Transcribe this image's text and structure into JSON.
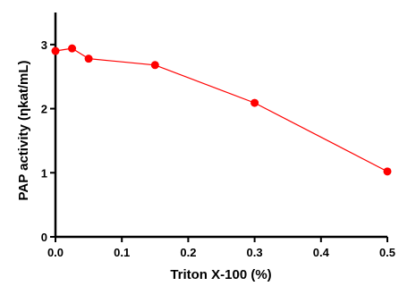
{
  "chart_data": {
    "type": "line",
    "title": "",
    "xlabel": "Triton X-100 (%)",
    "ylabel": "PAP activity (ηkat/mL)",
    "xlim": [
      0,
      0.5
    ],
    "ylim": [
      0,
      3.5
    ],
    "xticks": [
      "0.0",
      "0.1",
      "0.2",
      "0.3",
      "0.4",
      "0.5"
    ],
    "yticks": [
      "0",
      "1",
      "2",
      "3"
    ],
    "grid": false,
    "color": "#ff0000",
    "series": [
      {
        "x": [
          0.0,
          0.025,
          0.05,
          0.15,
          0.3,
          0.5
        ],
        "y": [
          2.9,
          2.94,
          2.78,
          2.68,
          2.09,
          1.02
        ]
      }
    ]
  }
}
